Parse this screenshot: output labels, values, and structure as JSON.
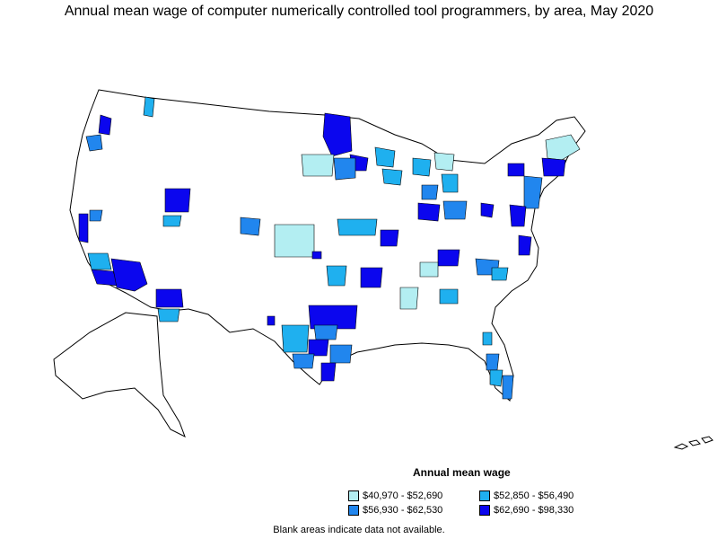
{
  "title": "Annual mean wage of computer numerically controlled tool programmers, by area, May 2020",
  "colors": {
    "outline": "#000000",
    "no_data": "#ffffff",
    "tier1": "#b3eef2",
    "tier2": "#1fb0ef",
    "tier3": "#2186ee",
    "tier4": "#0b06ee"
  },
  "legend": {
    "title": "Annual mean wage",
    "items": [
      {
        "label": "$40,970 - $52,690",
        "color": "#b3eef2"
      },
      {
        "label": "$52,850 - $56,490",
        "color": "#1fb0ef"
      },
      {
        "label": "$56,930 - $62,530",
        "color": "#2186ee"
      },
      {
        "label": "$62,690 - $98,330",
        "color": "#0b06ee"
      }
    ]
  },
  "note": "Blank areas indicate data not available."
}
